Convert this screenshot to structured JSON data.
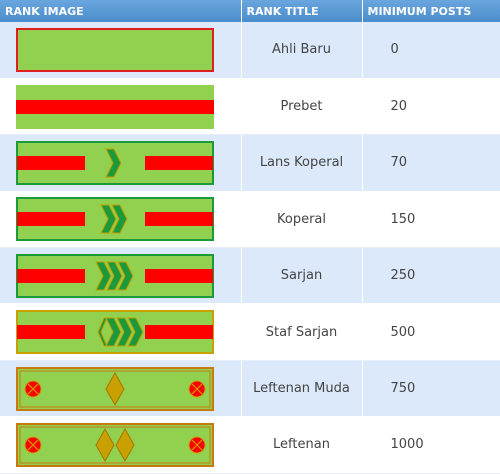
{
  "table": {
    "headers": {
      "rank_image": "RANK IMAGE",
      "rank_title": "RANK TITLE",
      "minimum_posts": "MINIMUM POSTS"
    },
    "rows": [
      {
        "title": "Ahli Baru",
        "posts": "0",
        "insignia": "plain-bar"
      },
      {
        "title": "Prebet",
        "posts": "20",
        "insignia": "red-stripe"
      },
      {
        "title": "Lans Koperal",
        "posts": "70",
        "insignia": "1-chevron"
      },
      {
        "title": "Koperal",
        "posts": "150",
        "insignia": "2-chevrons"
      },
      {
        "title": "Sarjan",
        "posts": "250",
        "insignia": "3-chevrons"
      },
      {
        "title": "Staf Sarjan",
        "posts": "500",
        "insignia": "3-chevrons-crown"
      },
      {
        "title": "Leftenan Muda",
        "posts": "750",
        "insignia": "1-diamond-2-stars"
      },
      {
        "title": "Leftenan",
        "posts": "1000",
        "insignia": "2-diamonds-2-stars"
      }
    ]
  },
  "colors": {
    "header_bg": "#5b9bd5",
    "row_alt_bg": "#dbe9fb",
    "badge_green": "#92d050",
    "badge_red": "#ff0000",
    "badge_gold": "#c8a000",
    "chevron_green": "#1a9a3a"
  }
}
